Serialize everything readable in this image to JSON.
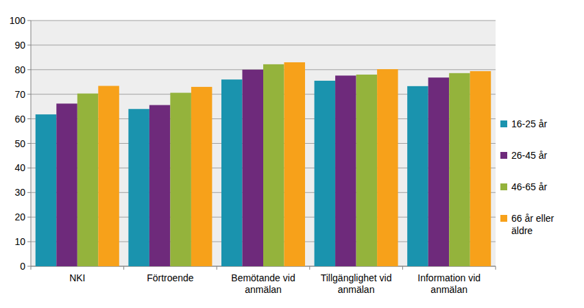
{
  "chart_data": {
    "type": "bar",
    "categories": [
      "NKI",
      "Förtroende",
      "Bemötande vid anmälan",
      "Tillgänglighet vid anmälan",
      "Information vid anmälan"
    ],
    "series": [
      {
        "name": "16-25 år",
        "color": "#1a93ae",
        "values": [
          61.8,
          64.0,
          76.0,
          75.5,
          73.3
        ]
      },
      {
        "name": "26-45 år",
        "color": "#6e2a7b",
        "values": [
          66.2,
          65.6,
          80.0,
          77.6,
          76.8
        ]
      },
      {
        "name": "46-65 år",
        "color": "#94b33c",
        "values": [
          70.3,
          70.6,
          82.2,
          78.0,
          78.6
        ]
      },
      {
        "name": "66 år eller äldre",
        "color": "#f7a11a",
        "values": [
          73.4,
          73.0,
          83.0,
          80.2,
          79.4
        ]
      }
    ],
    "ylim": [
      0,
      100
    ],
    "yticks": [
      0,
      10,
      20,
      30,
      40,
      50,
      60,
      70,
      80,
      90,
      100
    ],
    "grid": true,
    "legend": "right"
  }
}
